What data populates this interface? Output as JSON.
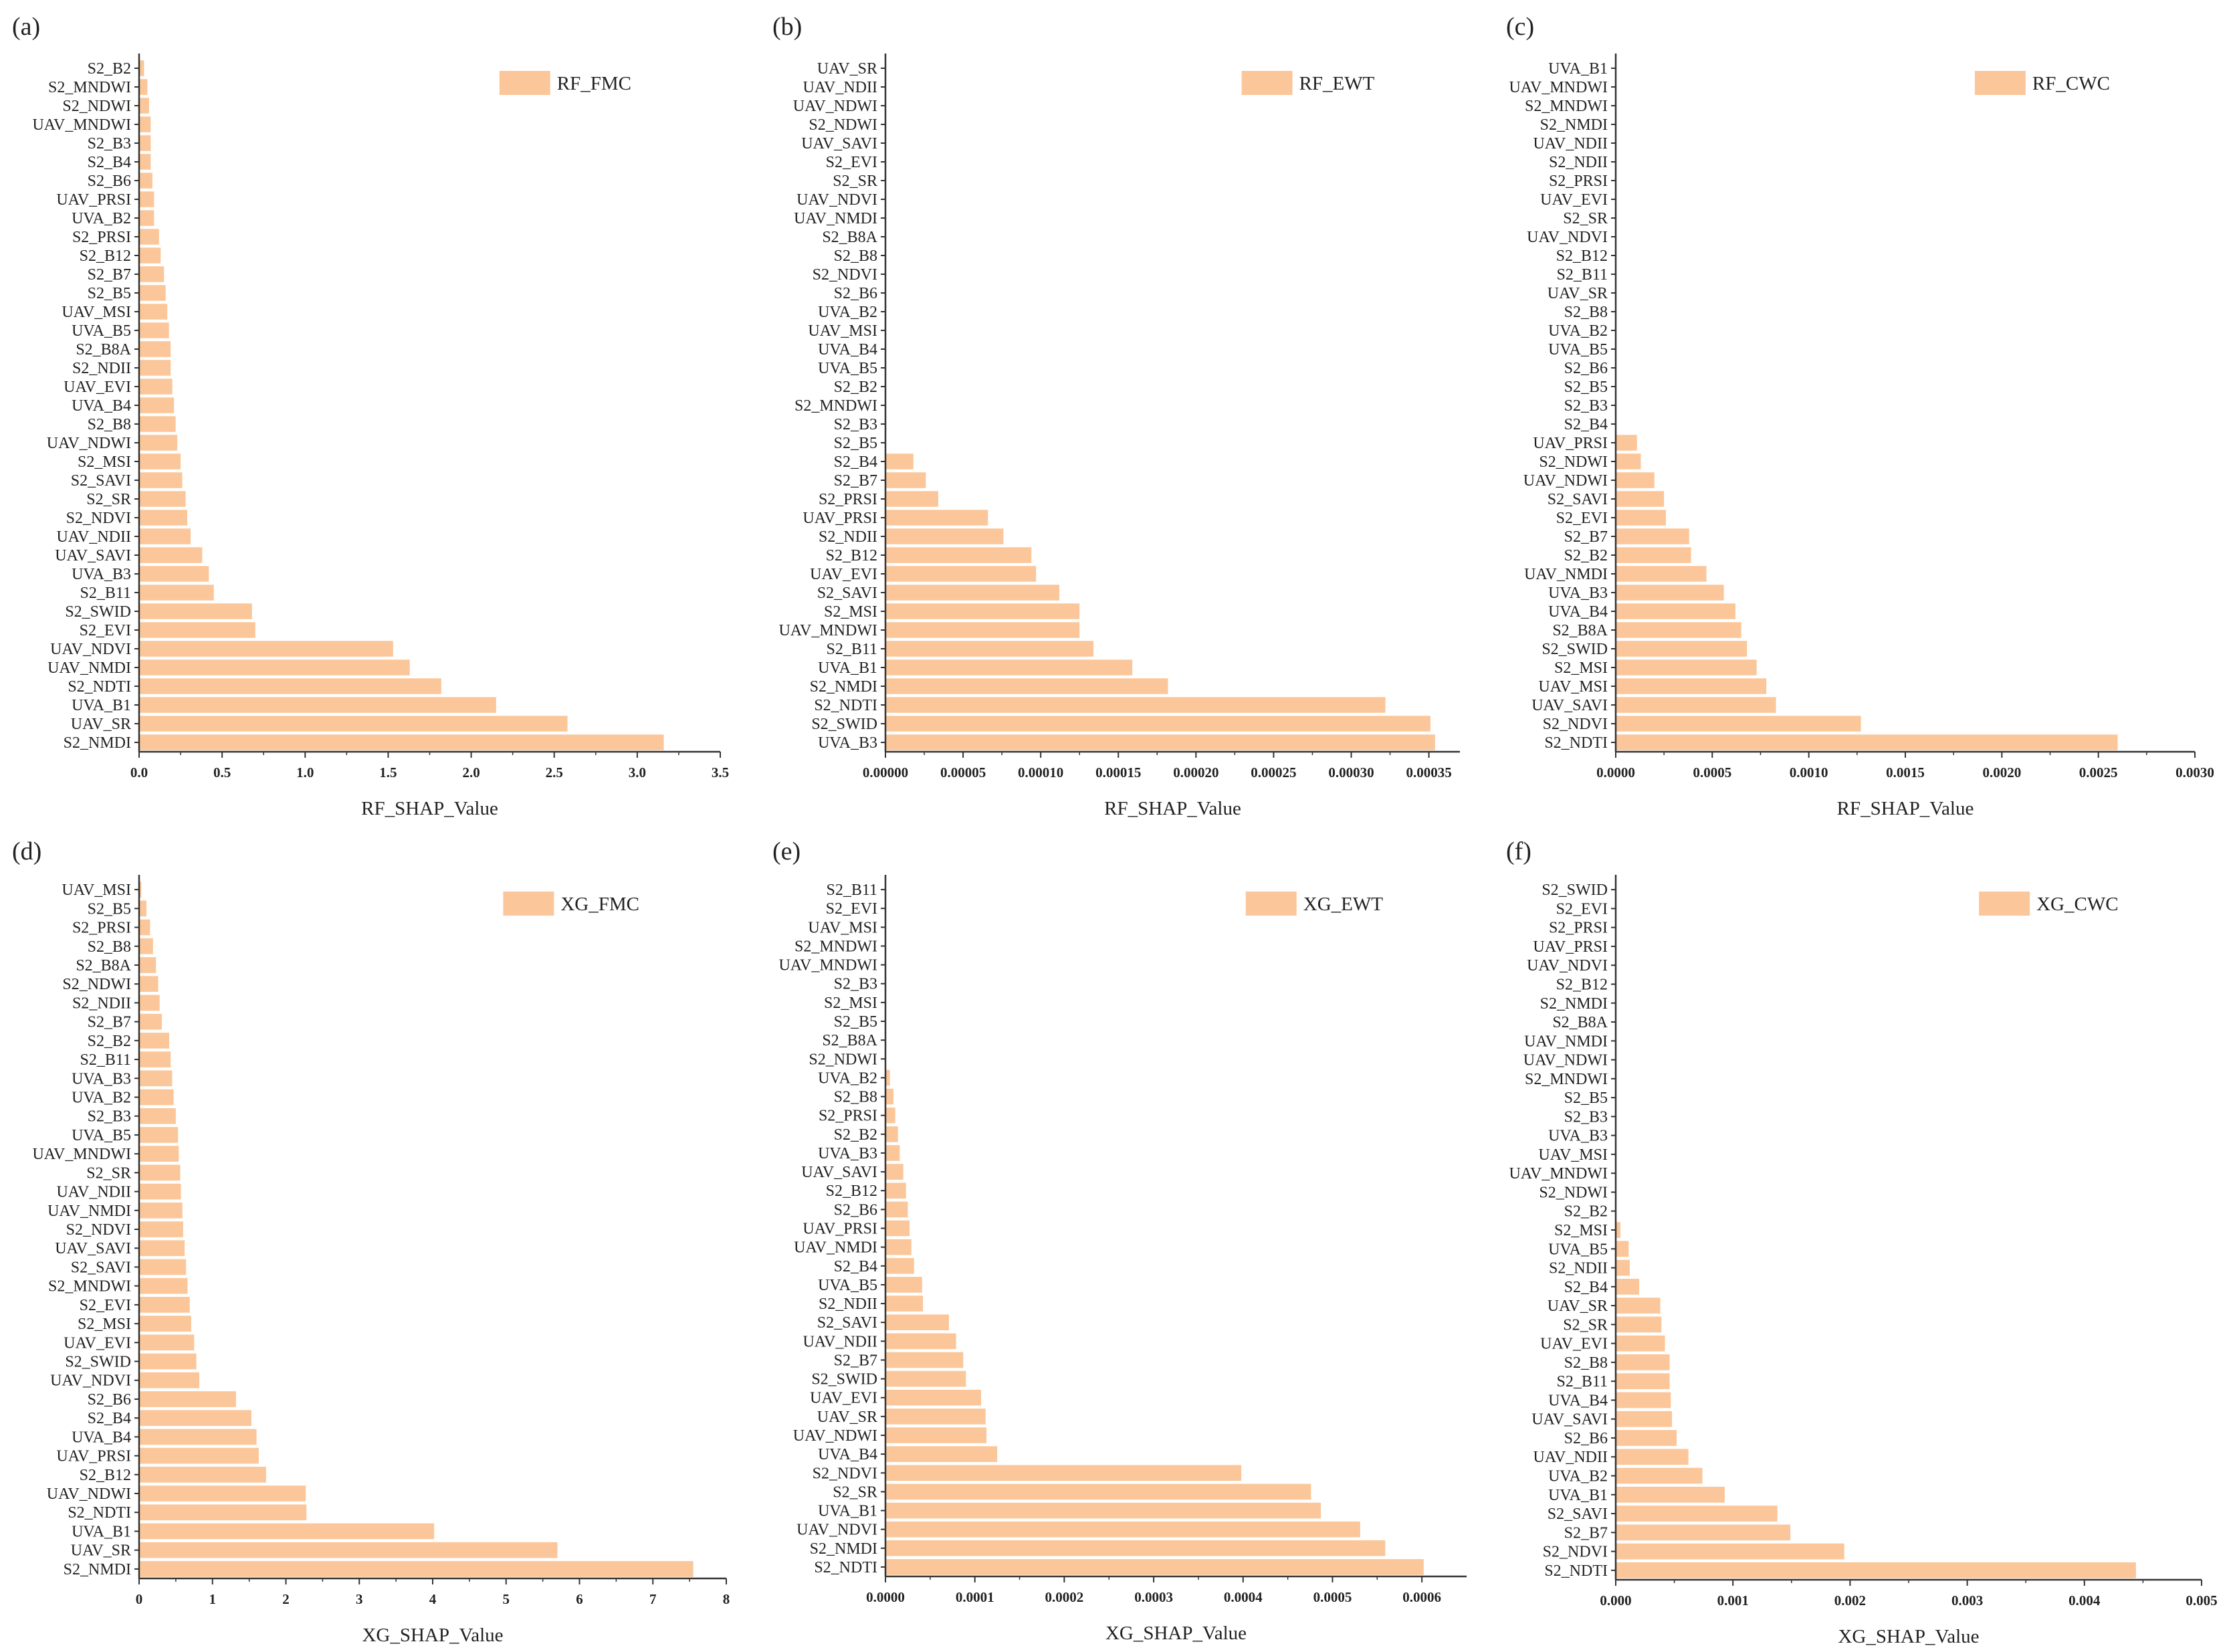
{
  "figure": {
    "bar_color": "#fbc79a",
    "axis_color": "#333333",
    "text_color": "#222222"
  },
  "chart_data": [
    {
      "panel": "(a)",
      "type": "bar",
      "orientation": "horizontal",
      "legend": "RF_FMC",
      "xlabel": "RF_SHAP_Value",
      "xlim": [
        0,
        3.5
      ],
      "xticks": [
        "0.0",
        "0.5",
        "1.0",
        "1.5",
        "2.0",
        "2.5",
        "3.0",
        "3.5"
      ],
      "categories": [
        "S2_B2",
        "S2_MNDWI",
        "S2_NDWI",
        "UAV_MNDWI",
        "S2_B3",
        "S2_B4",
        "S2_B6",
        "UAV_PRSI",
        "UVA_B2",
        "S2_PRSI",
        "S2_B12",
        "S2_B7",
        "S2_B5",
        "UAV_MSI",
        "UVA_B5",
        "S2_B8A",
        "S2_NDII",
        "UAV_EVI",
        "UVA_B4",
        "S2_B8",
        "UAV_NDWI",
        "S2_MSI",
        "S2_SAVI",
        "S2_SR",
        "S2_NDVI",
        "UAV_NDII",
        "UAV_SAVI",
        "UVA_B3",
        "S2_B11",
        "S2_SWID",
        "S2_EVI",
        "UAV_NDVI",
        "UAV_NMDI",
        "S2_NDTI",
        "UVA_B1",
        "UAV_SR",
        "S2_NMDI"
      ],
      "values": [
        0.03,
        0.05,
        0.06,
        0.07,
        0.07,
        0.07,
        0.08,
        0.09,
        0.09,
        0.12,
        0.13,
        0.15,
        0.16,
        0.17,
        0.18,
        0.19,
        0.19,
        0.2,
        0.21,
        0.22,
        0.23,
        0.25,
        0.26,
        0.28,
        0.29,
        0.31,
        0.38,
        0.42,
        0.45,
        0.68,
        0.7,
        1.53,
        1.63,
        1.82,
        2.15,
        2.58,
        3.16
      ]
    },
    {
      "panel": "(b)",
      "type": "bar",
      "orientation": "horizontal",
      "legend": "RF_EWT",
      "xlabel": "RF_SHAP_Value",
      "xlim": [
        0,
        0.00037
      ],
      "xticks": [
        "0.00000",
        "0.00005",
        "0.00010",
        "0.00015",
        "0.00020",
        "0.00025",
        "0.00030",
        "0.00035"
      ],
      "categories": [
        "UAV_SR",
        "UAV_NDII",
        "UAV_NDWI",
        "S2_NDWI",
        "UAV_SAVI",
        "S2_EVI",
        "S2_SR",
        "UAV_NDVI",
        "UAV_NMDI",
        "S2_B8A",
        "S2_B8",
        "S2_NDVI",
        "S2_B6",
        "UVA_B2",
        "UAV_MSI",
        "UVA_B4",
        "UVA_B5",
        "S2_B2",
        "S2_MNDWI",
        "S2_B3",
        "S2_B5",
        "S2_B4",
        "S2_B7",
        "S2_PRSI",
        "UAV_PRSI",
        "S2_NDII",
        "S2_B12",
        "UAV_EVI",
        "S2_SAVI",
        "S2_MSI",
        "UAV_MNDWI",
        "S2_B11",
        "UVA_B1",
        "S2_NMDI",
        "S2_NDTI",
        "S2_SWID",
        "UVA_B3"
      ],
      "values": [
        0,
        0,
        0,
        0,
        0,
        0,
        0,
        0,
        0,
        0,
        0,
        0,
        0,
        0,
        0,
        0,
        0,
        0,
        0,
        0,
        0,
        1.8e-05,
        2.6e-05,
        3.4e-05,
        6.6e-05,
        7.6e-05,
        9.4e-05,
        9.7e-05,
        0.000112,
        0.000125,
        0.000125,
        0.000134,
        0.000159,
        0.000182,
        0.000322,
        0.000351,
        0.000354
      ]
    },
    {
      "panel": "(c)",
      "type": "bar",
      "orientation": "horizontal",
      "legend": "RF_CWC",
      "xlabel": "RF_SHAP_Value",
      "xlim": [
        0,
        0.003
      ],
      "xticks": [
        "0.0000",
        "0.0005",
        "0.0010",
        "0.0015",
        "0.0020",
        "0.0025",
        "0.0030"
      ],
      "categories": [
        "UVA_B1",
        "UAV_MNDWI",
        "S2_MNDWI",
        "S2_NMDI",
        "UAV_NDII",
        "S2_NDII",
        "S2_PRSI",
        "UAV_EVI",
        "S2_SR",
        "UAV_NDVI",
        "S2_B12",
        "S2_B11",
        "UAV_SR",
        "S2_B8",
        "UVA_B2",
        "UVA_B5",
        "S2_B6",
        "S2_B5",
        "S2_B3",
        "S2_B4",
        "UAV_PRSI",
        "S2_NDWI",
        "UAV_NDWI",
        "S2_SAVI",
        "S2_EVI",
        "S2_B7",
        "S2_B2",
        "UAV_NMDI",
        "UVA_B3",
        "UVA_B4",
        "S2_B8A",
        "S2_SWID",
        "S2_MSI",
        "UAV_MSI",
        "UAV_SAVI",
        "S2_NDVI",
        "S2_NDTI"
      ],
      "values": [
        0,
        0,
        0,
        0,
        0,
        0,
        0,
        0,
        0,
        0,
        0,
        0,
        0,
        0,
        0,
        0,
        0,
        0,
        0,
        0,
        0.00011,
        0.00013,
        0.0002,
        0.00025,
        0.00026,
        0.00038,
        0.00039,
        0.00047,
        0.00056,
        0.00062,
        0.00065,
        0.00068,
        0.00073,
        0.00078,
        0.00083,
        0.00127,
        0.0026
      ]
    },
    {
      "panel": "(d)",
      "type": "bar",
      "orientation": "horizontal",
      "legend": "XG_FMC",
      "xlabel": "XG_SHAP_Value",
      "xlim": [
        0,
        8
      ],
      "xticks": [
        "0",
        "1",
        "2",
        "3",
        "4",
        "5",
        "6",
        "7",
        "8"
      ],
      "categories": [
        "UAV_MSI",
        "S2_B5",
        "S2_PRSI",
        "S2_B8",
        "S2_B8A",
        "S2_NDWI",
        "S2_NDII",
        "S2_B7",
        "S2_B2",
        "S2_B11",
        "UVA_B3",
        "UVA_B2",
        "S2_B3",
        "UVA_B5",
        "UAV_MNDWI",
        "S2_SR",
        "UAV_NDII",
        "UAV_NMDI",
        "S2_NDVI",
        "UAV_SAVI",
        "S2_SAVI",
        "S2_MNDWI",
        "S2_EVI",
        "S2_MSI",
        "UAV_EVI",
        "S2_SWID",
        "UAV_NDVI",
        "S2_B6",
        "S2_B4",
        "UVA_B4",
        "UAV_PRSI",
        "S2_B12",
        "UAV_NDWI",
        "S2_NDTI",
        "UVA_B1",
        "UAV_SR",
        "S2_NMDI"
      ],
      "values": [
        0.03,
        0.1,
        0.15,
        0.19,
        0.23,
        0.26,
        0.28,
        0.31,
        0.41,
        0.43,
        0.45,
        0.47,
        0.5,
        0.53,
        0.54,
        0.56,
        0.57,
        0.59,
        0.6,
        0.62,
        0.64,
        0.66,
        0.69,
        0.71,
        0.75,
        0.78,
        0.82,
        1.32,
        1.53,
        1.6,
        1.63,
        1.73,
        2.27,
        2.28,
        4.02,
        5.7,
        7.55
      ]
    },
    {
      "panel": "(e)",
      "type": "bar",
      "orientation": "horizontal",
      "legend": "XG_EWT",
      "xlabel": "XG_SHAP_Value",
      "xlim": [
        0,
        0.00065
      ],
      "xticks": [
        "0.0000",
        "0.0001",
        "0.0002",
        "0.0003",
        "0.0004",
        "0.0005",
        "0.0006"
      ],
      "categories": [
        "S2_B11",
        "S2_EVI",
        "UAV_MSI",
        "S2_MNDWI",
        "UAV_MNDWI",
        "S2_B3",
        "S2_MSI",
        "S2_B5",
        "S2_B8A",
        "S2_NDWI",
        "UVA_B2",
        "S2_B8",
        "S2_PRSI",
        "S2_B2",
        "UVA_B3",
        "UAV_SAVI",
        "S2_B12",
        "S2_B6",
        "UAV_PRSI",
        "UAV_NMDI",
        "S2_B4",
        "UVA_B5",
        "S2_NDII",
        "S2_SAVI",
        "UAV_NDII",
        "S2_B7",
        "S2_SWID",
        "UAV_EVI",
        "UAV_SR",
        "UAV_NDWI",
        "UVA_B4",
        "S2_NDVI",
        "S2_SR",
        "UVA_B1",
        "UAV_NDVI",
        "S2_NMDI",
        "S2_NDTI"
      ],
      "values": [
        0,
        0,
        0,
        0,
        0,
        0,
        0,
        0,
        0,
        0,
        5e-06,
        9e-06,
        1.1e-05,
        1.4e-05,
        1.6e-05,
        2e-05,
        2.3e-05,
        2.5e-05,
        2.7e-05,
        2.9e-05,
        3.2e-05,
        4.1e-05,
        4.2e-05,
        7.1e-05,
        7.9e-05,
        8.7e-05,
        9e-05,
        0.000107,
        0.000112,
        0.000113,
        0.000125,
        0.000398,
        0.000476,
        0.000487,
        0.000531,
        0.000559,
        0.000602
      ]
    },
    {
      "panel": "(f)",
      "type": "bar",
      "orientation": "horizontal",
      "legend": "XG_CWC",
      "xlabel": "XG_SHAP_Value",
      "xlim": [
        0,
        0.005
      ],
      "xticks": [
        "0.000",
        "0.001",
        "0.002",
        "0.003",
        "0.004",
        "0.005"
      ],
      "categories": [
        "S2_SWID",
        "S2_EVI",
        "S2_PRSI",
        "UAV_PRSI",
        "UAV_NDVI",
        "S2_B12",
        "S2_NMDI",
        "S2_B8A",
        "UAV_NMDI",
        "UAV_NDWI",
        "S2_MNDWI",
        "S2_B5",
        "S2_B3",
        "UVA_B3",
        "UAV_MSI",
        "UAV_MNDWI",
        "S2_NDWI",
        "S2_B2",
        "S2_MSI",
        "UVA_B5",
        "S2_NDII",
        "S2_B4",
        "UAV_SR",
        "S2_SR",
        "UAV_EVI",
        "S2_B8",
        "S2_B11",
        "UVA_B4",
        "UAV_SAVI",
        "S2_B6",
        "UAV_NDII",
        "UVA_B2",
        "UVA_B1",
        "S2_SAVI",
        "S2_B7",
        "S2_NDVI",
        "S2_NDTI"
      ],
      "values": [
        0,
        0,
        0,
        0,
        0,
        0,
        0,
        0,
        0,
        0,
        0,
        0,
        0,
        0,
        0,
        0,
        0,
        0,
        4e-05,
        0.00011,
        0.00012,
        0.0002,
        0.00038,
        0.00039,
        0.00042,
        0.00046,
        0.00046,
        0.00047,
        0.00048,
        0.00052,
        0.00062,
        0.00074,
        0.00093,
        0.00138,
        0.00149,
        0.00195,
        0.00444
      ]
    }
  ]
}
